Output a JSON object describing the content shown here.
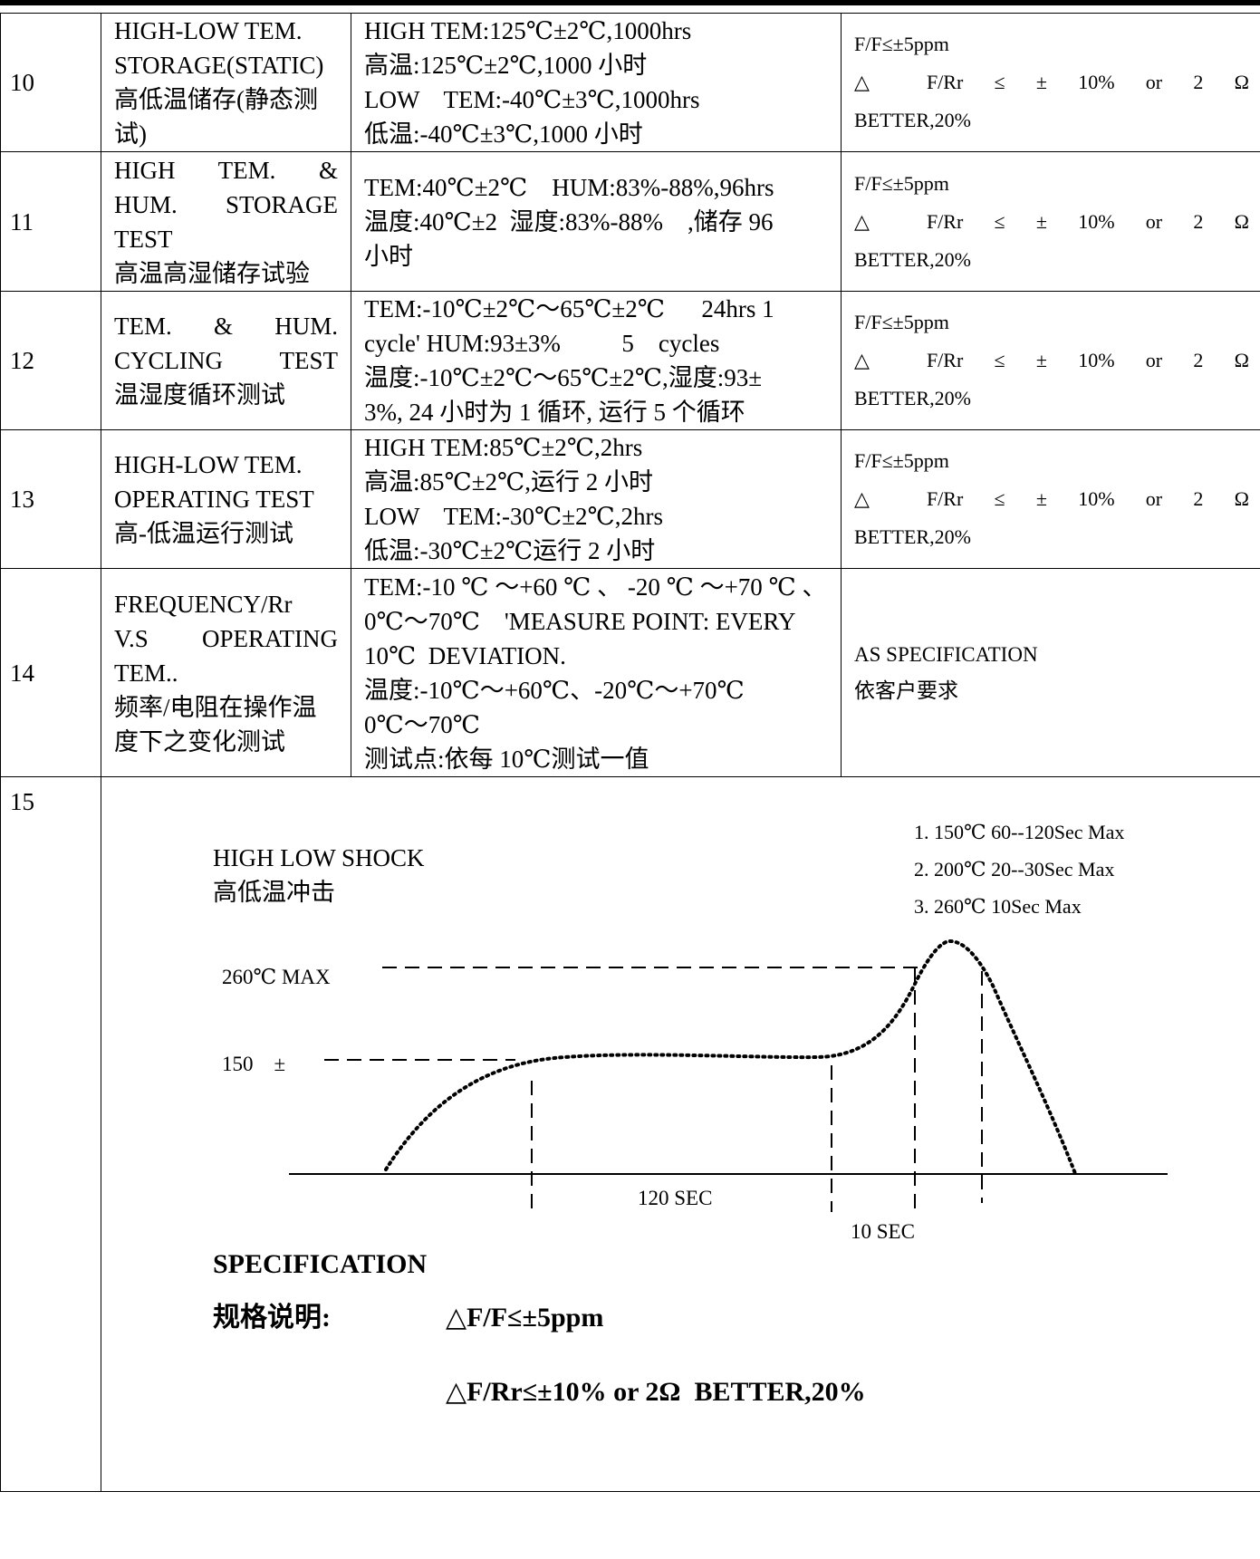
{
  "rows": [
    {
      "no": "10",
      "item_en": [
        "HIGH-LOW TEM.",
        "STORAGE(STATIC)"
      ],
      "item_zh": [
        "高低温储存(静态测",
        "试)"
      ],
      "condition": [
        "HIGH TEM:125℃±2℃,1000hrs",
        "高温:125℃±2℃,1000 小时",
        "LOW    TEM:-40℃±3℃,1000hrs",
        "低温:-40℃±3℃,1000 小时"
      ],
      "criteria": [
        "F/F≤±5ppm",
        "△ F/Rr ≤ ± 10% or 2 Ω",
        "BETTER,20%"
      ]
    },
    {
      "no": "11",
      "item_en": [
        "HIGH      TEM.    &",
        "HUM.    STORAGE",
        "TEST"
      ],
      "item_zh": [
        "高温高湿储存试验"
      ],
      "condition": [
        "TEM:40℃±2℃    HUM:83%-88%,96hrs",
        "温度:40℃±2  湿度:83%-88%    ,储存 96",
        "小时"
      ],
      "criteria": [
        "F/F≤±5ppm",
        "△ F/Rr ≤ ± 10% or 2 Ω",
        "BETTER,20%"
      ]
    },
    {
      "no": "12",
      "item_en": [
        "TEM.    &    HUM.",
        "CYCLING    TEST"
      ],
      "item_zh": [
        "温湿度循环测试"
      ],
      "condition": [
        "TEM:-10℃±2℃～65℃±2℃      24hrs 1",
        "cycle' HUM:93±3%          5    cycles",
        "温度:-10℃±2℃～65℃±2℃,湿度:93±",
        "3%, 24 小时为 1 循环, 运行 5 个循环"
      ],
      "criteria": [
        "F/F≤±5ppm",
        "△ F/Rr ≤ ± 10% or 2 Ω",
        "BETTER,20%"
      ]
    },
    {
      "no": "13",
      "item_en": [
        "HIGH-LOW TEM.",
        "OPERATING TEST"
      ],
      "item_zh": [
        "高-低温运行测试"
      ],
      "condition": [
        "HIGH TEM:85℃±2℃,2hrs",
        "高温:85℃±2℃,运行 2 小时",
        "LOW    TEM:-30℃±2℃,2hrs",
        "低温:-30℃±2℃运行 2 小时"
      ],
      "criteria": [
        "F/F≤±5ppm",
        "△ F/Rr ≤ ± 10% or 2 Ω",
        "BETTER,20%"
      ]
    },
    {
      "no": "14",
      "item_en": [
        "FREQUENCY/Rr",
        "V.S    OPERATING",
        "TEM.."
      ],
      "item_zh": [
        "频率/电阻在操作温",
        "度下之变化测试"
      ],
      "condition": [
        "TEM:-10 ℃ ～+60 ℃ 、 -20 ℃ ～+70 ℃ 、",
        "0℃～70℃    'MEASURE POINT: EVERY",
        "10℃  DEVIATION.",
        "温度:-10℃～+60℃、-20℃～+70℃",
        "0℃～70℃",
        "测试点:依每 10℃测试一值"
      ],
      "criteria": [
        "AS SPECIFICATION",
        "依客户要求"
      ]
    }
  ],
  "row15": {
    "no": "15",
    "title_en": "HIGH LOW SHOCK",
    "title_zh": "高低温冲击",
    "legend": [
      "1. 150℃  60--120Sec Max",
      "2. 200℃  20--30Sec Max",
      "3. 260℃  10Sec Max"
    ],
    "label_260": "260℃  MAX",
    "label_150": "150    ±",
    "label_120sec": "120 SEC",
    "label_10sec": "10 SEC",
    "spec_title": "SPECIFICATION",
    "spec_zh": "规格说明:",
    "spec_line1": "△F/F≤±5ppm",
    "spec_line2": "△F/Rr≤±10% or 2Ω  BETTER,20%"
  }
}
